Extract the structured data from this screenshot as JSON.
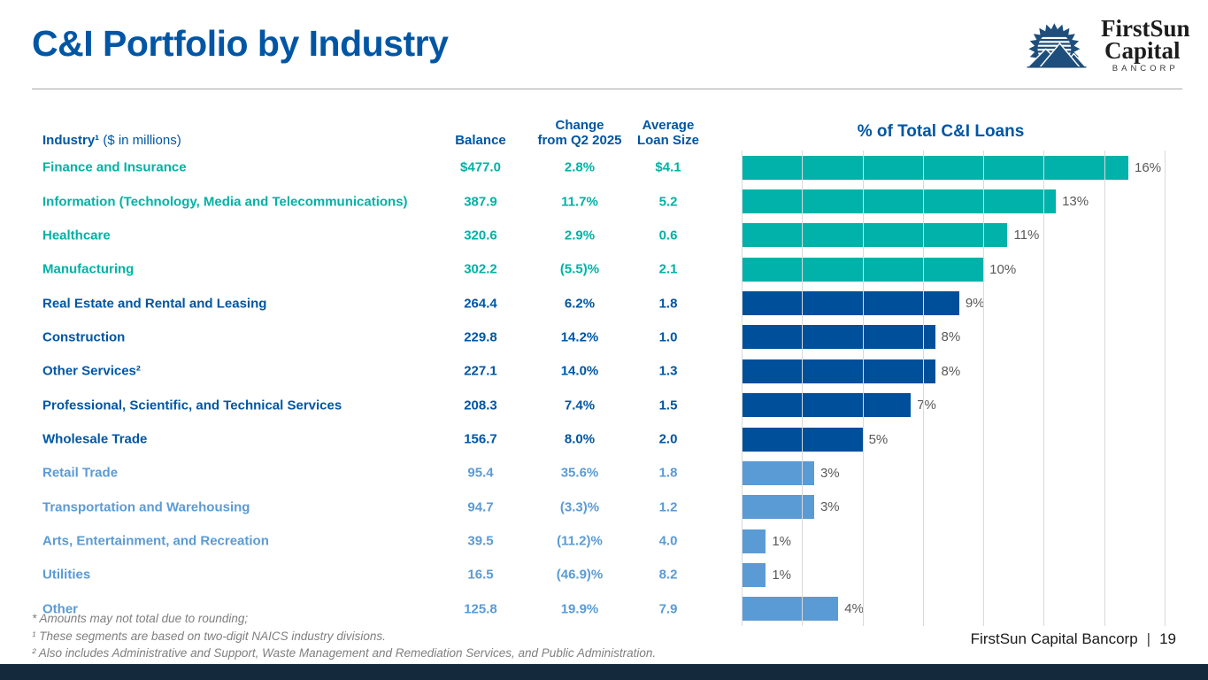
{
  "slide": {
    "title": "C&I Portfolio by Industry",
    "footer_company": "FirstSun Capital Bancorp",
    "footer_separator": "|",
    "page_number": "19"
  },
  "logo": {
    "name_line1": "FirstSun",
    "name_line2": "Capital",
    "name_line3": "BANCORP"
  },
  "table": {
    "header": {
      "industry_label": "Industry¹",
      "industry_suffix": " ($ in millions)",
      "balance": "Balance",
      "change_line1": "Change",
      "change_line2": "from Q2 2025",
      "avg_line1": "Average",
      "avg_line2": "Loan Size"
    },
    "rows": [
      {
        "label": "Finance and Insurance",
        "balance": "$477.0",
        "change": "2.8%",
        "avg": "$4.1",
        "tier": "teal"
      },
      {
        "label": "Information (Technology, Media and Telecommunications)",
        "balance": "387.9",
        "change": "11.7%",
        "avg": "5.2",
        "tier": "teal"
      },
      {
        "label": "Healthcare",
        "balance": "320.6",
        "change": "2.9%",
        "avg": "0.6",
        "tier": "teal"
      },
      {
        "label": "Manufacturing",
        "balance": "302.2",
        "change": "(5.5)%",
        "avg": "2.1",
        "tier": "teal"
      },
      {
        "label": "Real Estate and Rental and Leasing",
        "balance": "264.4",
        "change": "6.2%",
        "avg": "1.8",
        "tier": "dark"
      },
      {
        "label": "Construction",
        "balance": "229.8",
        "change": "14.2%",
        "avg": "1.0",
        "tier": "dark"
      },
      {
        "label": "Other Services²",
        "balance": "227.1",
        "change": "14.0%",
        "avg": "1.3",
        "tier": "dark"
      },
      {
        "label": "Professional, Scientific, and Technical Services",
        "balance": "208.3",
        "change": "7.4%",
        "avg": "1.5",
        "tier": "dark"
      },
      {
        "label": "Wholesale Trade",
        "balance": "156.7",
        "change": "8.0%",
        "avg": "2.0",
        "tier": "dark"
      },
      {
        "label": "Retail Trade",
        "balance": "95.4",
        "change": "35.6%",
        "avg": "1.8",
        "tier": "light"
      },
      {
        "label": "Transportation and Warehousing",
        "balance": "94.7",
        "change": "(3.3)%",
        "avg": "1.2",
        "tier": "light"
      },
      {
        "label": "Arts, Entertainment, and Recreation",
        "balance": "39.5",
        "change": "(11.2)%",
        "avg": "4.0",
        "tier": "light"
      },
      {
        "label": "Utilities",
        "balance": "16.5",
        "change": "(46.9)%",
        "avg": "8.2",
        "tier": "light"
      },
      {
        "label": "Other",
        "balance": "125.8",
        "change": "19.9%",
        "avg": "7.9",
        "tier": "light"
      }
    ]
  },
  "chart_data": {
    "type": "bar",
    "orientation": "horizontal",
    "title": "% of Total C&I Loans",
    "categories": [
      "Finance and Insurance",
      "Information (Technology, Media and Telecommunications)",
      "Healthcare",
      "Manufacturing",
      "Real Estate and Rental and Leasing",
      "Construction",
      "Other Services",
      "Professional, Scientific, and Technical Services",
      "Wholesale Trade",
      "Retail Trade",
      "Transportation and Warehousing",
      "Arts, Entertainment, and Recreation",
      "Utilities",
      "Other"
    ],
    "values": [
      16,
      13,
      11,
      10,
      9,
      8,
      8,
      7,
      5,
      3,
      3,
      1,
      1,
      4
    ],
    "value_labels": [
      "16%",
      "13%",
      "11%",
      "10%",
      "9%",
      "8%",
      "8%",
      "7%",
      "5%",
      "3%",
      "3%",
      "1%",
      "1%",
      "4%"
    ],
    "xlim": [
      0,
      17.5
    ],
    "gridline_step_pct": 2.5,
    "gridlines_on": true,
    "legend_on": false,
    "bar_colors_by_tier": {
      "teal": "#00b2a9",
      "dark": "#004f9b",
      "light": "#5b9bd5"
    },
    "label_color": "#595959"
  },
  "footnotes": [
    "* Amounts may not total due to rounding;",
    "¹ These segments are based on two-digit NAICS industry divisions.",
    "² Also includes Administrative and Support, Waste Management and Remediation Services, and Public Administration."
  ],
  "theme": {
    "title_blue": "#0056a4",
    "teal_text": "#00b2a5",
    "dark_blue_text": "#0056a4",
    "light_blue_text": "#5b9bd5",
    "footnote_gray": "#7f7f7f",
    "bottom_bar_navy": "#15293c",
    "logo_navy": "#1e4e7c"
  }
}
